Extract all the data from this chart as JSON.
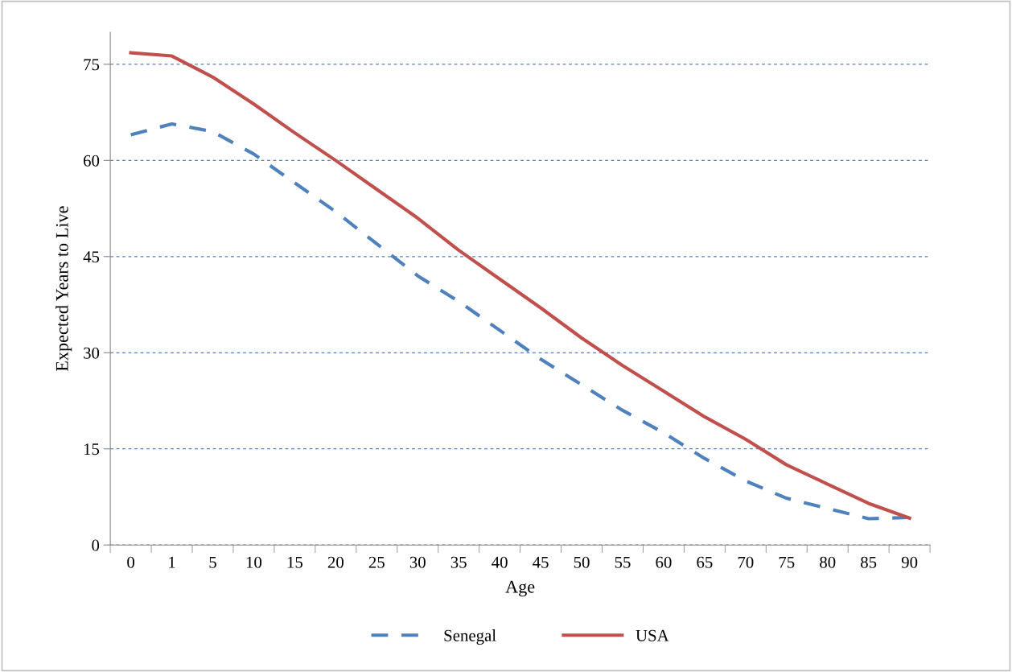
{
  "chart_data": {
    "type": "line",
    "xlabel": "Age",
    "ylabel": "Expected Years to Live",
    "categories": [
      "0",
      "1",
      "5",
      "10",
      "15",
      "20",
      "25",
      "30",
      "35",
      "40",
      "45",
      "50",
      "55",
      "60",
      "65",
      "70",
      "75",
      "80",
      "85",
      "90"
    ],
    "series": [
      {
        "name": "Senegal",
        "color": "#4f81bd",
        "line_style": "dashed",
        "values": [
          64,
          65.7,
          64.5,
          61,
          56.5,
          52,
          47,
          42,
          38,
          33.5,
          29,
          25,
          21,
          17.5,
          13.5,
          10,
          7.3,
          5.7,
          4.1,
          4.3
        ]
      },
      {
        "name": "USA",
        "color": "#c0504d",
        "line_style": "solid",
        "values": [
          76.8,
          76.3,
          73,
          68.8,
          64.3,
          60,
          55.5,
          51,
          46,
          41.5,
          37,
          32.3,
          28,
          24,
          20,
          16.5,
          12.5,
          9.5,
          6.5,
          4.2
        ]
      }
    ],
    "ylim": [
      0,
      80
    ],
    "yticks": [
      0,
      15,
      30,
      45,
      60,
      75
    ],
    "grid": "y",
    "legend": "bottom",
    "marker": "none"
  }
}
